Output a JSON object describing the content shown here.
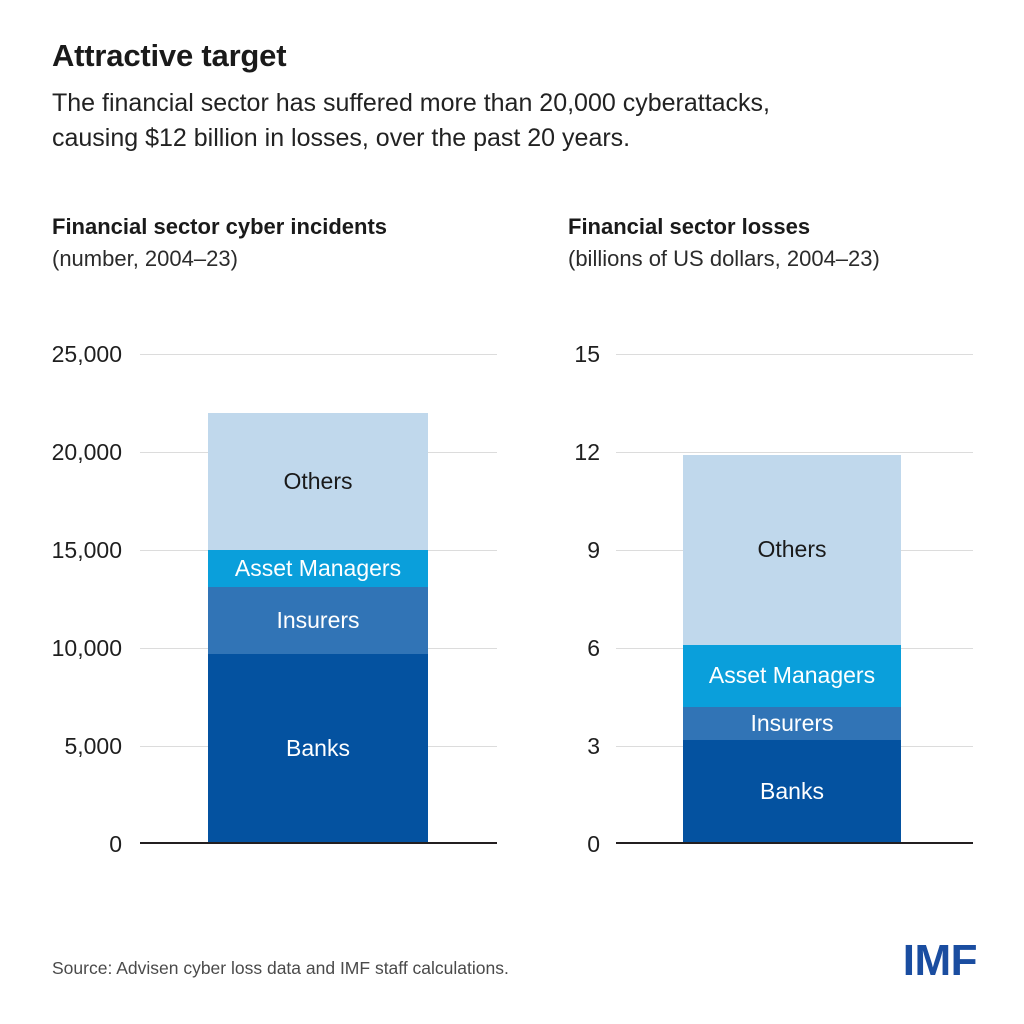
{
  "page": {
    "title": "Attractive target",
    "subtitle_line1": "The financial sector has suffered more than 20,000 cyberattacks,",
    "subtitle_line2": "causing $12 billion in losses, over the past 20 years.",
    "source": "Source: Advisen cyber loss data and IMF staff calculations.",
    "logo": "IMF"
  },
  "colors": {
    "text": "#1a1a1a",
    "gridline": "#dcdcdc",
    "axis": "#231f20",
    "source_text": "#4a4a4a",
    "imf_blue": "#1a4da0",
    "banks": "#0452a0",
    "insurers": "#3174b6",
    "asset_managers": "#0a9fdb",
    "others": "#c0d8ec"
  },
  "chart_data": [
    {
      "type": "bar",
      "stacked": true,
      "title": "Financial sector cyber incidents",
      "subtitle": "(number, 2004–23)",
      "xlabel": "",
      "ylabel": "number of incidents",
      "ylim": [
        0,
        25000
      ],
      "yticks": [
        0,
        5000,
        10000,
        15000,
        20000,
        25000
      ],
      "ytick_labels": [
        "0",
        "5,000",
        "10,000",
        "15,000",
        "20,000",
        "25,000"
      ],
      "grid": true,
      "legend": "labels inside bar segments",
      "categories": [
        "2004–23"
      ],
      "series": [
        {
          "name": "Banks",
          "values": [
            9700
          ],
          "color": "#0452a0",
          "label_color": "#ffffff"
        },
        {
          "name": "Insurers",
          "values": [
            3400
          ],
          "color": "#3174b6",
          "label_color": "#ffffff"
        },
        {
          "name": "Asset Managers",
          "values": [
            1900
          ],
          "color": "#0a9fdb",
          "label_color": "#ffffff"
        },
        {
          "name": "Others",
          "values": [
            7000
          ],
          "color": "#c0d8ec",
          "label_color": "#1a1a1a"
        }
      ]
    },
    {
      "type": "bar",
      "stacked": true,
      "title": "Financial sector losses",
      "subtitle": "(billions of US dollars, 2004–23)",
      "xlabel": "",
      "ylabel": "billions of US dollars",
      "ylim": [
        0,
        15
      ],
      "yticks": [
        0,
        3,
        6,
        9,
        12,
        15
      ],
      "ytick_labels": [
        "0",
        "3",
        "6",
        "9",
        "12",
        "15"
      ],
      "grid": true,
      "legend": "labels inside bar segments",
      "categories": [
        "2004–23"
      ],
      "series": [
        {
          "name": "Banks",
          "values": [
            3.2
          ],
          "color": "#0452a0",
          "label_color": "#ffffff"
        },
        {
          "name": "Insurers",
          "values": [
            1.0
          ],
          "color": "#3174b6",
          "label_color": "#ffffff"
        },
        {
          "name": "Asset Managers",
          "values": [
            1.9
          ],
          "color": "#0a9fdb",
          "label_color": "#ffffff"
        },
        {
          "name": "Others",
          "values": [
            5.8
          ],
          "color": "#c0d8ec",
          "label_color": "#1a1a1a"
        }
      ]
    }
  ]
}
